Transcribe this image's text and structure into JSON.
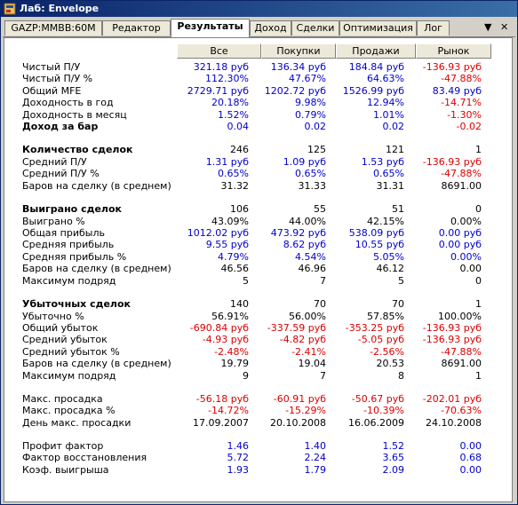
{
  "window": {
    "title": "Лаб: Envelope"
  },
  "tabs": [
    "GAZP:MMBB:60M",
    "Редактор",
    "Результаты",
    "Доход",
    "Сделки",
    "Оптимизация",
    "Лог"
  ],
  "active_tab": 2,
  "tab_nav": {
    "arrow": "▼",
    "close": "✕"
  },
  "columns": [
    "Все",
    "Покупки",
    "Продажи",
    "Рынок"
  ],
  "rows": [
    {
      "label": "Чистый П/У",
      "values": [
        "321.18 руб",
        "136.34 руб",
        "184.84 руб",
        "-136.93 руб"
      ],
      "colors": [
        "pos",
        "pos",
        "pos",
        "neg"
      ]
    },
    {
      "label": "Чистый П/У %",
      "values": [
        "112.30%",
        "47.67%",
        "64.63%",
        "-47.88%"
      ],
      "colors": [
        "pos",
        "pos",
        "pos",
        "neg"
      ]
    },
    {
      "label": "Общий MFE",
      "values": [
        "2729.71 руб",
        "1202.72 руб",
        "1526.99 руб",
        "83.49 руб"
      ],
      "colors": [
        "pos",
        "pos",
        "pos",
        "pos"
      ]
    },
    {
      "label": "Доходность в год",
      "values": [
        "20.18%",
        "9.98%",
        "12.94%",
        "-14.71%"
      ],
      "colors": [
        "pos",
        "pos",
        "pos",
        "neg"
      ]
    },
    {
      "label": "Доходность в месяц",
      "values": [
        "1.52%",
        "0.79%",
        "1.01%",
        "-1.30%"
      ],
      "colors": [
        "pos",
        "pos",
        "pos",
        "neg"
      ]
    },
    {
      "label": "Доход за бар",
      "values": [
        "0.04",
        "0.02",
        "0.02",
        "-0.02"
      ],
      "colors": [
        "pos",
        "pos",
        "pos",
        "neg"
      ],
      "bold": true
    },
    {
      "label": "Количество сделок",
      "values": [
        "246",
        "125",
        "121",
        "1"
      ],
      "colors": [
        "neu",
        "neu",
        "neu",
        "neu"
      ],
      "bold": true
    },
    {
      "label": "Средний П/У",
      "values": [
        "1.31 руб",
        "1.09 руб",
        "1.53 руб",
        "-136.93 руб"
      ],
      "colors": [
        "pos",
        "pos",
        "pos",
        "neg"
      ]
    },
    {
      "label": "Средний П/У %",
      "values": [
        "0.65%",
        "0.65%",
        "0.65%",
        "-47.88%"
      ],
      "colors": [
        "pos",
        "pos",
        "pos",
        "neg"
      ]
    },
    {
      "label": "Баров на сделку (в среднем)",
      "values": [
        "31.32",
        "31.33",
        "31.31",
        "8691.00"
      ],
      "colors": [
        "neu",
        "neu",
        "neu",
        "neu"
      ]
    },
    {
      "label": "Выиграно сделок",
      "values": [
        "106",
        "55",
        "51",
        "0"
      ],
      "colors": [
        "neu",
        "neu",
        "neu",
        "neu"
      ],
      "bold": true
    },
    {
      "label": "Выиграно %",
      "values": [
        "43.09%",
        "44.00%",
        "42.15%",
        "0.00%"
      ],
      "colors": [
        "neu",
        "neu",
        "neu",
        "neu"
      ]
    },
    {
      "label": "Общая прибыль",
      "values": [
        "1012.02 руб",
        "473.92 руб",
        "538.09 руб",
        "0.00 руб"
      ],
      "colors": [
        "pos",
        "pos",
        "pos",
        "pos"
      ]
    },
    {
      "label": "Средняя прибыль",
      "values": [
        "9.55 руб",
        "8.62 руб",
        "10.55 руб",
        "0.00 руб"
      ],
      "colors": [
        "pos",
        "pos",
        "pos",
        "pos"
      ]
    },
    {
      "label": "Средняя прибыль %",
      "values": [
        "4.79%",
        "4.54%",
        "5.05%",
        "0.00%"
      ],
      "colors": [
        "pos",
        "pos",
        "pos",
        "pos"
      ]
    },
    {
      "label": "Баров на сделку (в среднем)",
      "values": [
        "46.56",
        "46.96",
        "46.12",
        "0.00"
      ],
      "colors": [
        "neu",
        "neu",
        "neu",
        "neu"
      ]
    },
    {
      "label": "Максимум подряд",
      "values": [
        "5",
        "7",
        "5",
        "0"
      ],
      "colors": [
        "neu",
        "neu",
        "neu",
        "neu"
      ]
    },
    {
      "label": "Убыточных сделок",
      "values": [
        "140",
        "70",
        "70",
        "1"
      ],
      "colors": [
        "neu",
        "neu",
        "neu",
        "neu"
      ],
      "bold": true
    },
    {
      "label": "Убыточно %",
      "values": [
        "56.91%",
        "56.00%",
        "57.85%",
        "100.00%"
      ],
      "colors": [
        "neu",
        "neu",
        "neu",
        "neu"
      ]
    },
    {
      "label": "Общий убыток",
      "values": [
        "-690.84 руб",
        "-337.59 руб",
        "-353.25 руб",
        "-136.93 руб"
      ],
      "colors": [
        "neg",
        "neg",
        "neg",
        "neg"
      ]
    },
    {
      "label": "Средний убыток",
      "values": [
        "-4.93 руб",
        "-4.82 руб",
        "-5.05 руб",
        "-136.93 руб"
      ],
      "colors": [
        "neg",
        "neg",
        "neg",
        "neg"
      ]
    },
    {
      "label": "Средний убыток %",
      "values": [
        "-2.48%",
        "-2.41%",
        "-2.56%",
        "-47.88%"
      ],
      "colors": [
        "neg",
        "neg",
        "neg",
        "neg"
      ]
    },
    {
      "label": "Баров на сделку (в среднем)",
      "values": [
        "19.79",
        "19.04",
        "20.53",
        "8691.00"
      ],
      "colors": [
        "neu",
        "neu",
        "neu",
        "neu"
      ]
    },
    {
      "label": "Максимум подряд",
      "values": [
        "9",
        "7",
        "8",
        "1"
      ],
      "colors": [
        "neu",
        "neu",
        "neu",
        "neu"
      ]
    },
    {
      "label": "Макс. просадка",
      "values": [
        "-56.18 руб",
        "-60.91 руб",
        "-50.67 руб",
        "-202.01 руб"
      ],
      "colors": [
        "neg",
        "neg",
        "neg",
        "neg"
      ]
    },
    {
      "label": "Макс. просадка %",
      "values": [
        "-14.72%",
        "-15.29%",
        "-10.39%",
        "-70.63%"
      ],
      "colors": [
        "neg",
        "neg",
        "neg",
        "neg"
      ]
    },
    {
      "label": "День макс. просадки",
      "values": [
        "17.09.2007",
        "20.10.2008",
        "16.06.2009",
        "24.10.2008"
      ],
      "colors": [
        "neu",
        "neu",
        "neu",
        "neu"
      ]
    },
    {
      "label": "Профит фактор",
      "values": [
        "1.46",
        "1.40",
        "1.52",
        "0.00"
      ],
      "colors": [
        "pos",
        "pos",
        "pos",
        "pos"
      ]
    },
    {
      "label": "Фактор восстановления",
      "values": [
        "5.72",
        "2.24",
        "3.65",
        "0.68"
      ],
      "colors": [
        "pos",
        "pos",
        "pos",
        "pos"
      ]
    },
    {
      "label": "Коэф. выигрыша",
      "values": [
        "1.93",
        "1.79",
        "2.09",
        "0.00"
      ],
      "colors": [
        "pos",
        "pos",
        "pos",
        "pos"
      ]
    }
  ]
}
